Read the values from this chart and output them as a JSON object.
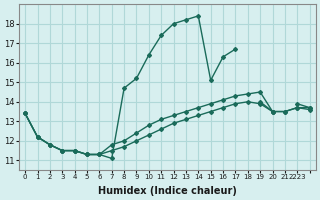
{
  "title": "",
  "xlabel": "Humidex (Indice chaleur)",
  "ylabel": "",
  "bg_color": "#d7efef",
  "grid_color": "#b0d8d8",
  "line_color": "#1a6b5a",
  "series": [
    {
      "x": [
        0,
        1,
        2,
        3,
        4,
        5,
        6,
        7,
        8,
        9,
        10,
        11,
        12,
        13,
        14,
        15,
        16,
        17,
        18,
        19,
        20,
        21,
        22,
        23
      ],
      "y": [
        13.4,
        12.2,
        11.8,
        11.5,
        11.5,
        11.3,
        11.3,
        11.1,
        14.7,
        15.2,
        16.4,
        17.4,
        18.0,
        18.2,
        18.4,
        15.1,
        16.3,
        16.7,
        null,
        14.0,
        13.5,
        null,
        13.9,
        13.7
      ]
    },
    {
      "x": [
        0,
        1,
        2,
        3,
        4,
        5,
        6,
        7,
        8,
        9,
        10,
        11,
        12,
        13,
        14,
        15,
        16,
        17,
        18,
        19,
        20,
        21,
        22,
        23
      ],
      "y": [
        13.4,
        12.2,
        11.8,
        11.5,
        11.5,
        11.3,
        11.3,
        11.8,
        12.0,
        12.4,
        12.8,
        13.1,
        13.3,
        13.5,
        13.7,
        13.9,
        14.1,
        14.3,
        14.4,
        14.5,
        13.5,
        13.5,
        13.7,
        13.7
      ]
    },
    {
      "x": [
        0,
        1,
        2,
        3,
        4,
        5,
        6,
        7,
        8,
        9,
        10,
        11,
        12,
        13,
        14,
        15,
        16,
        17,
        18,
        19,
        20,
        21,
        22,
        23
      ],
      "y": [
        13.4,
        12.2,
        11.8,
        11.5,
        11.5,
        11.3,
        11.3,
        11.5,
        11.7,
        12.0,
        12.3,
        12.6,
        12.9,
        13.1,
        13.3,
        13.5,
        13.7,
        13.9,
        14.0,
        13.9,
        13.5,
        13.5,
        13.7,
        13.6
      ]
    }
  ],
  "xlim": [
    -0.5,
    23.5
  ],
  "ylim": [
    10.5,
    19.0
  ],
  "yticks": [
    11,
    12,
    13,
    14,
    15,
    16,
    17,
    18
  ],
  "xticks": [
    0,
    1,
    2,
    3,
    4,
    5,
    6,
    7,
    8,
    9,
    10,
    11,
    12,
    13,
    14,
    15,
    16,
    17,
    18,
    19,
    20,
    21,
    22,
    23
  ],
  "xtick_labels": [
    "0",
    "1",
    "2",
    "3",
    "4",
    "5",
    "6",
    "7",
    "8",
    "9",
    "10",
    "11",
    "12",
    "13",
    "14",
    "15",
    "16",
    "17",
    "18",
    "19",
    "20",
    "21",
    "2223",
    ""
  ]
}
